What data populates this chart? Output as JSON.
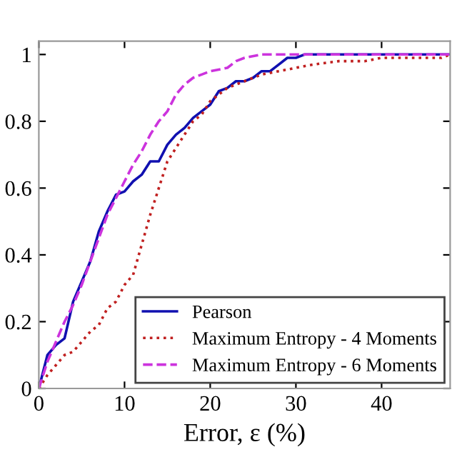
{
  "chart_data": {
    "type": "line",
    "xlabel": "Error, ε (%)",
    "xlim": [
      0,
      48
    ],
    "xticks": [
      0,
      10,
      20,
      30,
      40
    ],
    "ylim": [
      0,
      1.04
    ],
    "yticks": [
      0,
      0.2,
      0.4,
      0.6,
      0.8,
      1
    ],
    "grid": false,
    "legend": "bottom right",
    "series": [
      {
        "name": "Pearson",
        "color": "#1010b0",
        "line_style": "solid",
        "x": [
          0,
          1,
          2,
          3,
          4,
          5,
          6,
          7,
          8,
          9,
          10,
          11,
          12,
          13,
          14,
          15,
          16,
          17,
          18,
          19,
          20,
          21,
          22,
          23,
          24,
          25,
          26,
          27,
          28,
          29,
          30,
          31,
          48
        ],
        "values": [
          0,
          0.1,
          0.13,
          0.15,
          0.26,
          0.32,
          0.38,
          0.47,
          0.53,
          0.58,
          0.59,
          0.62,
          0.64,
          0.68,
          0.68,
          0.73,
          0.76,
          0.78,
          0.81,
          0.83,
          0.85,
          0.89,
          0.9,
          0.92,
          0.92,
          0.93,
          0.95,
          0.95,
          0.97,
          0.99,
          0.99,
          1.0,
          1.0
        ]
      },
      {
        "name": "Maximum Entropy - 4 Moments",
        "color": "#c02020",
        "line_style": "dotted",
        "x": [
          0,
          1,
          2,
          3,
          4,
          5,
          6,
          7,
          8,
          9,
          10,
          11,
          12,
          13,
          14,
          15,
          16,
          17,
          18,
          19,
          20,
          21,
          22,
          23,
          24,
          25,
          26,
          28,
          30,
          32,
          35,
          38,
          40,
          47,
          48
        ],
        "values": [
          0,
          0.04,
          0.07,
          0.1,
          0.11,
          0.14,
          0.17,
          0.19,
          0.24,
          0.26,
          0.31,
          0.34,
          0.43,
          0.52,
          0.6,
          0.68,
          0.72,
          0.76,
          0.8,
          0.82,
          0.86,
          0.88,
          0.9,
          0.91,
          0.92,
          0.93,
          0.94,
          0.95,
          0.96,
          0.97,
          0.98,
          0.98,
          0.99,
          0.99,
          1.0
        ]
      },
      {
        "name": "Maximum Entropy - 6 Moments",
        "color": "#cc33dd",
        "line_style": "dashed",
        "x": [
          0,
          1,
          2,
          3,
          4,
          5,
          6,
          7,
          8,
          9,
          10,
          11,
          12,
          13,
          14,
          15,
          16,
          17,
          18,
          19,
          20,
          22,
          23,
          24,
          26,
          48
        ],
        "values": [
          0,
          0.08,
          0.14,
          0.2,
          0.25,
          0.31,
          0.38,
          0.45,
          0.52,
          0.57,
          0.62,
          0.67,
          0.71,
          0.76,
          0.8,
          0.83,
          0.88,
          0.91,
          0.93,
          0.94,
          0.95,
          0.96,
          0.98,
          0.99,
          1.0,
          1.0
        ]
      }
    ]
  }
}
